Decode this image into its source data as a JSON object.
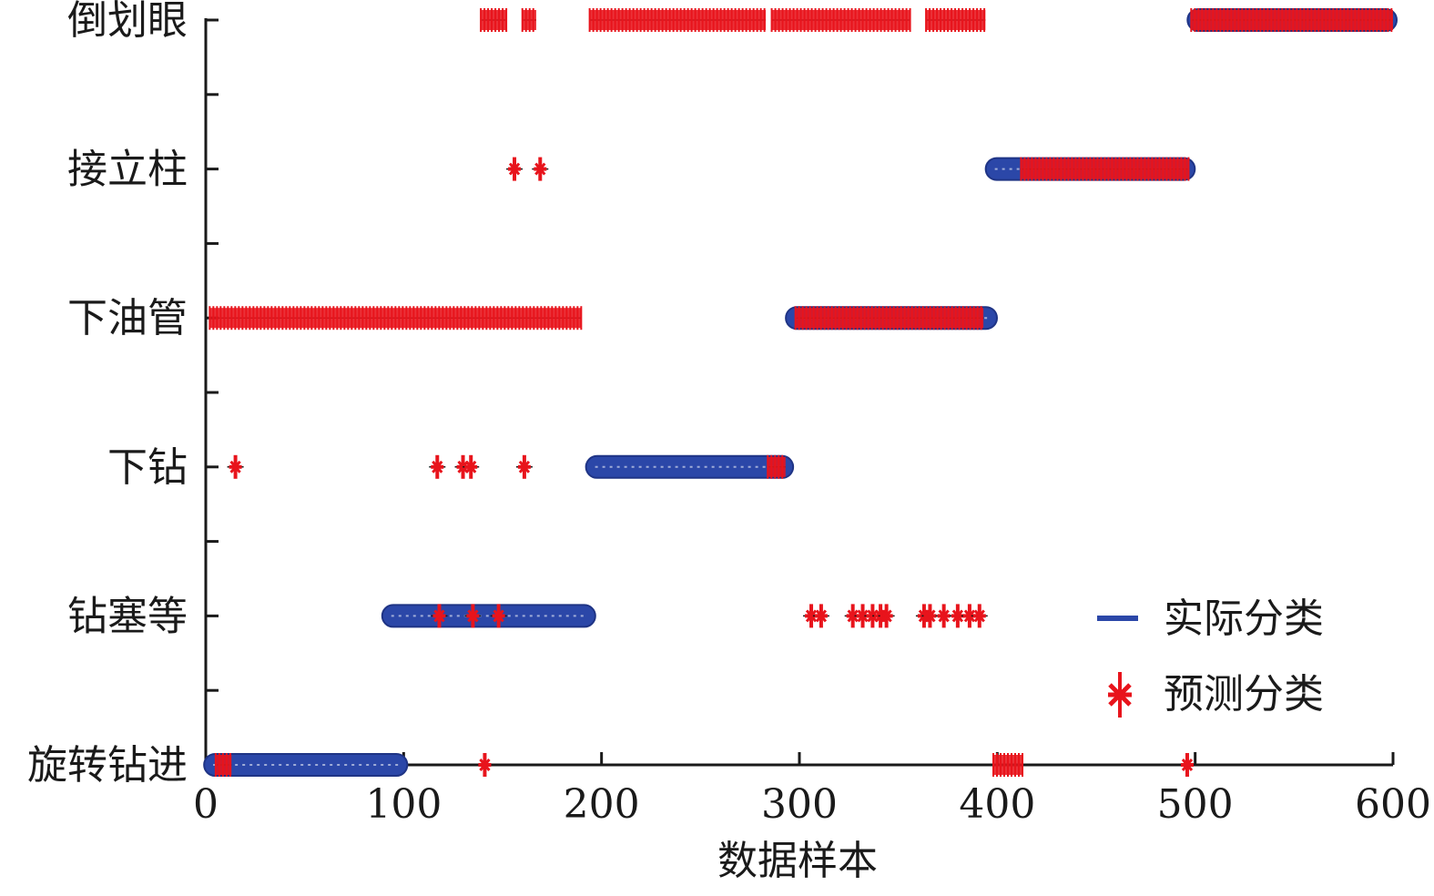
{
  "chart_data": {
    "type": "scatter",
    "xlabel": "数据样本",
    "ylabel": "",
    "xlim": [
      0,
      600
    ],
    "xticks": [
      0,
      100,
      200,
      300,
      400,
      500,
      600
    ],
    "xtick_labels": [
      "0",
      "100",
      "200",
      "300",
      "400",
      "500",
      "600"
    ],
    "categories": [
      "旋转钻进",
      "钻塞等",
      "下钻",
      "下油管",
      "接立柱",
      "倒划眼"
    ],
    "grid": false,
    "legend_position": "bottom-right",
    "colors": {
      "actual": "#2b47a8",
      "predicted": "#e8141c",
      "axis": "#1a1a1a"
    },
    "series": [
      {
        "name": "实际分类",
        "marker": "line",
        "segments": [
          {
            "category": "旋转钻进",
            "x": [
              1,
              100
            ]
          },
          {
            "category": "钻塞等",
            "x": [
              91,
              195
            ]
          },
          {
            "category": "下钻",
            "x": [
              194,
              295
            ]
          },
          {
            "category": "下油管",
            "x": [
              295,
              398
            ]
          },
          {
            "category": "接立柱",
            "x": [
              396,
              498
            ]
          },
          {
            "category": "倒划眼",
            "x": [
              498,
              600
            ]
          }
        ]
      },
      {
        "name": "预测分类",
        "marker": "star",
        "segments": [
          {
            "category": "倒划眼",
            "x": [
              139,
              152
            ]
          },
          {
            "category": "倒划眼",
            "x": [
              160,
              167
            ]
          },
          {
            "category": "倒划眼",
            "x": [
              194,
              283
            ]
          },
          {
            "category": "倒划眼",
            "x": [
              286,
              356
            ]
          },
          {
            "category": "倒划眼",
            "x": [
              364,
              394
            ]
          },
          {
            "category": "倒划眼",
            "x": [
              498,
              600
            ]
          },
          {
            "category": "接立柱",
            "x": [
              412,
              497
            ]
          },
          {
            "category": "下油管",
            "x": [
              2,
              190
            ]
          },
          {
            "category": "下油管",
            "x": [
              298,
              393
            ]
          },
          {
            "category": "下钻",
            "x": [
              284,
              293
            ]
          },
          {
            "category": "旋转钻进",
            "x": [
              5,
              13
            ]
          },
          {
            "category": "旋转钻进",
            "x": [
              398,
              413
            ]
          }
        ],
        "points": [
          {
            "category": "接立柱",
            "x": 156
          },
          {
            "category": "接立柱",
            "x": 169
          },
          {
            "category": "下钻",
            "x": 15
          },
          {
            "category": "下钻",
            "x": 117
          },
          {
            "category": "下钻",
            "x": 130
          },
          {
            "category": "下钻",
            "x": 134
          },
          {
            "category": "下钻",
            "x": 161
          },
          {
            "category": "钻塞等",
            "x": 118
          },
          {
            "category": "钻塞等",
            "x": 135
          },
          {
            "category": "钻塞等",
            "x": 148
          },
          {
            "category": "钻塞等",
            "x": 306
          },
          {
            "category": "钻塞等",
            "x": 311
          },
          {
            "category": "钻塞等",
            "x": 327
          },
          {
            "category": "钻塞等",
            "x": 332
          },
          {
            "category": "钻塞等",
            "x": 337
          },
          {
            "category": "钻塞等",
            "x": 341
          },
          {
            "category": "钻塞等",
            "x": 344
          },
          {
            "category": "钻塞等",
            "x": 363
          },
          {
            "category": "钻塞等",
            "x": 366
          },
          {
            "category": "钻塞等",
            "x": 373
          },
          {
            "category": "钻塞等",
            "x": 380
          },
          {
            "category": "钻塞等",
            "x": 386
          },
          {
            "category": "钻塞等",
            "x": 391
          },
          {
            "category": "旋转钻进",
            "x": 141
          },
          {
            "category": "旋转钻进",
            "x": 496
          }
        ]
      }
    ]
  }
}
